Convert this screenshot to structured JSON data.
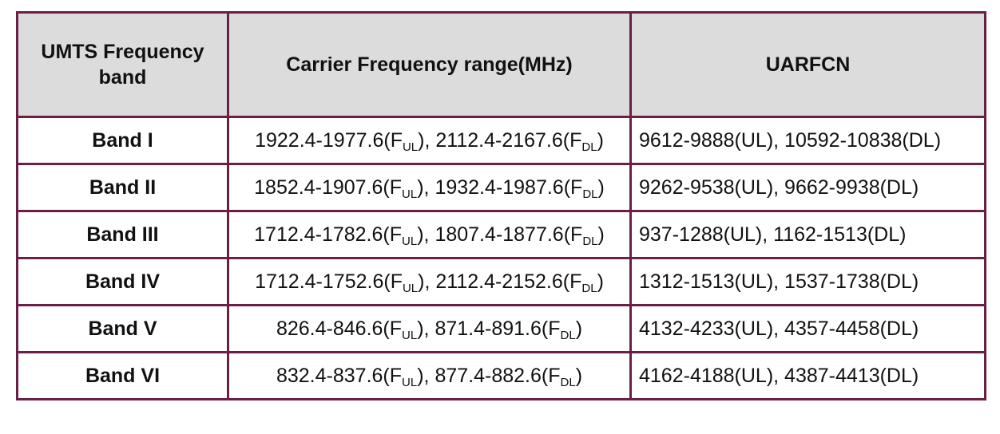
{
  "table": {
    "headers": [
      "UMTS Frequency band",
      "Carrier Frequency range(MHz)",
      "UARFCN"
    ],
    "rows": [
      {
        "band": "Band I",
        "ul_range": "1922.4-1977.6",
        "dl_range": "2112.4-2167.6",
        "uarfcn": "9612-9888(UL), 10592-10838(DL)"
      },
      {
        "band": "Band II",
        "ul_range": "1852.4-1907.6",
        "dl_range": "1932.4-1987.6",
        "uarfcn": "9262-9538(UL), 9662-9938(DL)"
      },
      {
        "band": "Band III",
        "ul_range": "1712.4-1782.6",
        "dl_range": "1807.4-1877.6",
        "uarfcn": "937-1288(UL), 1162-1513(DL)"
      },
      {
        "band": "Band IV",
        "ul_range": "1712.4-1752.6",
        "dl_range": "2112.4-2152.6",
        "uarfcn": "1312-1513(UL), 1537-1738(DL)"
      },
      {
        "band": "Band V",
        "ul_range": "826.4-846.6",
        "dl_range": "871.4-891.6",
        "uarfcn": "4132-4233(UL), 4357-4458(DL)"
      },
      {
        "band": "Band VI",
        "ul_range": "832.4-837.6",
        "dl_range": "877.4-882.6",
        "uarfcn": "4162-4188(UL), 4387-4413(DL)"
      }
    ],
    "notation": {
      "freq_symbol": "F",
      "ul_subscript": "UL",
      "dl_subscript": "DL"
    }
  },
  "colors": {
    "border": "#6b1f45",
    "header_background": "#dcdcdc",
    "text": "#111111"
  }
}
